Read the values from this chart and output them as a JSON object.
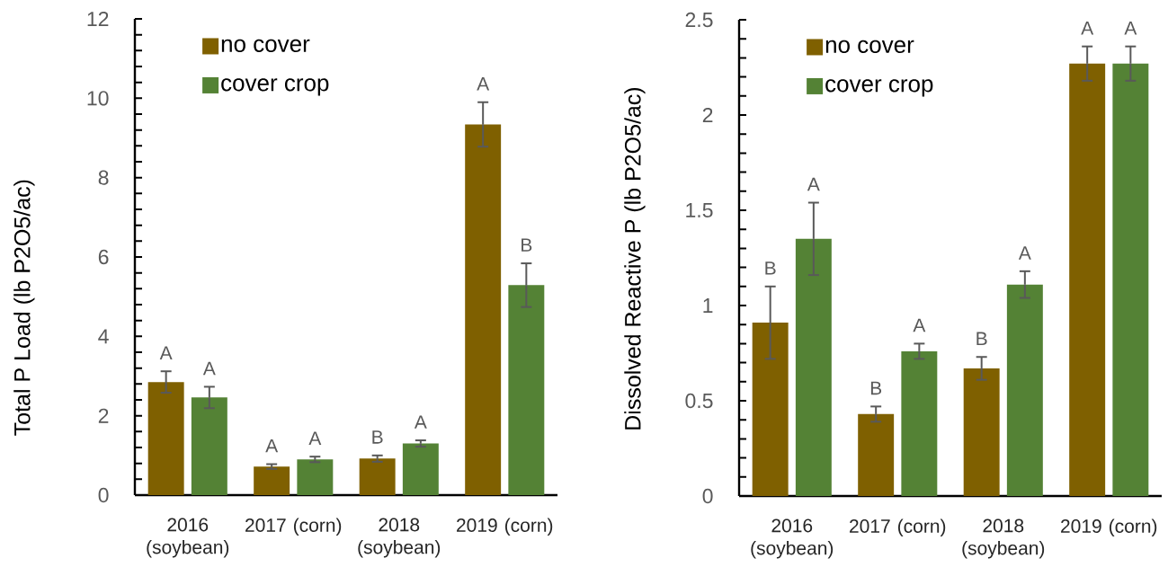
{
  "chart_data": [
    {
      "type": "bar",
      "ylabel": "Total P Load (lb P2O5/ac)",
      "categories": [
        "2016 (soybean)",
        "2017 (corn)",
        "2018 (soybean)",
        "2019 (corn)"
      ],
      "series": [
        {
          "name": "no cover",
          "color": "#7f6000",
          "values": [
            2.85,
            0.72,
            0.92,
            9.34
          ],
          "errors": [
            0.27,
            0.06,
            0.08,
            0.56
          ],
          "value_labels": [
            "A",
            "A",
            "B",
            "A"
          ]
        },
        {
          "name": "cover crop",
          "color": "#548235",
          "values": [
            2.46,
            0.9,
            1.3,
            5.29
          ],
          "errors": [
            0.27,
            0.07,
            0.08,
            0.55
          ],
          "value_labels": [
            "A",
            "A",
            "A",
            "B"
          ]
        }
      ],
      "ylim": [
        0,
        12
      ],
      "yticks": [
        0,
        {
          "value": 0.4,
          "label": null
        },
        {
          "value": 0.8,
          "label": null
        },
        {
          "value": 1.2,
          "label": null
        },
        {
          "value": 1.6,
          "label": null
        },
        2,
        {
          "value": 2.4,
          "label": null
        },
        {
          "value": 2.8,
          "label": null
        },
        {
          "value": 3.2,
          "label": null
        },
        {
          "value": 3.6,
          "label": null
        },
        4,
        {
          "value": 4.4,
          "label": null
        },
        {
          "value": 4.8,
          "label": null
        },
        {
          "value": 5.2,
          "label": null
        },
        {
          "value": 5.6,
          "label": null
        },
        6,
        {
          "value": 6.4,
          "label": null
        },
        {
          "value": 6.8,
          "label": null
        },
        {
          "value": 7.2,
          "label": null
        },
        {
          "value": 7.6,
          "label": null
        },
        8,
        {
          "value": 8.4,
          "label": null
        },
        {
          "value": 8.8,
          "label": null
        },
        {
          "value": 9.2,
          "label": null
        },
        {
          "value": 9.6,
          "label": null
        },
        10,
        {
          "value": 10.4,
          "label": null
        },
        {
          "value": 10.8,
          "label": null
        },
        {
          "value": 11.2,
          "label": null
        },
        {
          "value": 11.6,
          "label": null
        },
        12
      ],
      "legend": "top left"
    },
    {
      "type": "bar",
      "ylabel": "Dissolved Reactive P (lb P2O5/ac)",
      "categories": [
        "2016 (soybean)",
        "2017 (corn)",
        "2018 (soybean)",
        "2019 (corn)"
      ],
      "series": [
        {
          "name": "no cover",
          "color": "#7f6000",
          "values": [
            0.91,
            0.43,
            0.67,
            2.27
          ],
          "errors": [
            0.19,
            0.04,
            0.06,
            0.09
          ],
          "value_labels": [
            "B",
            "B",
            "B",
            "A"
          ]
        },
        {
          "name": "cover crop",
          "color": "#548235",
          "values": [
            1.35,
            0.76,
            1.11,
            2.27
          ],
          "errors": [
            0.19,
            0.04,
            0.07,
            0.09
          ],
          "value_labels": [
            "A",
            "A",
            "A",
            "A"
          ]
        }
      ],
      "ylim": [
        0,
        2.5
      ],
      "yticks": [
        0,
        {
          "value": 0.1,
          "label": null
        },
        {
          "value": 0.2,
          "label": null
        },
        {
          "value": 0.3,
          "label": null
        },
        {
          "value": 0.4,
          "label": null
        },
        0.5,
        {
          "value": 0.6,
          "label": null
        },
        {
          "value": 0.7,
          "label": null
        },
        {
          "value": 0.8,
          "label": null
        },
        {
          "value": 0.9,
          "label": null
        },
        1,
        {
          "value": 1.1,
          "label": null
        },
        {
          "value": 1.2,
          "label": null
        },
        {
          "value": 1.3,
          "label": null
        },
        {
          "value": 1.4,
          "label": null
        },
        1.5,
        {
          "value": 1.6,
          "label": null
        },
        {
          "value": 1.7,
          "label": null
        },
        {
          "value": 1.8,
          "label": null
        },
        {
          "value": 1.9,
          "label": null
        },
        2,
        {
          "value": 2.1,
          "label": null
        },
        {
          "value": 2.2,
          "label": null
        },
        {
          "value": 2.3,
          "label": null
        },
        {
          "value": 2.4,
          "label": null
        },
        2.5
      ],
      "legend": "top left"
    }
  ]
}
